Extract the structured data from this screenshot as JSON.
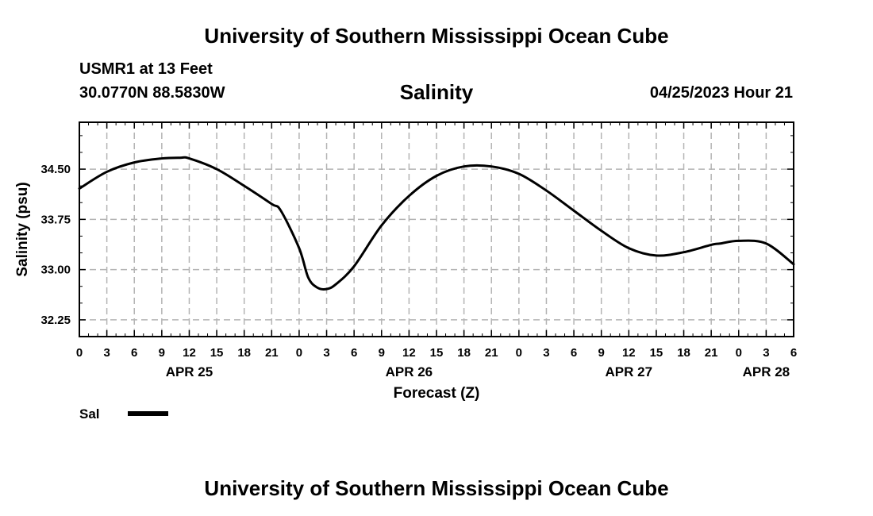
{
  "page": {
    "top_title": "University of Southern Mississippi Ocean Cube",
    "bottom_title": "University of Southern Mississippi Ocean Cube",
    "station": "USMR1 at 13 Feet",
    "location": "30.0770N  88.5830W",
    "chart_title": "Salinity",
    "datetime": "04/25/2023 Hour 21"
  },
  "chart_data": {
    "type": "line",
    "title": "Salinity",
    "xlabel": "Forecast (Z)",
    "ylabel": "Salinity (psu)",
    "x_unit": "hours since 2023-04-25 00Z",
    "xlim": [
      0,
      78
    ],
    "ylim": [
      32.0,
      35.2
    ],
    "grid": true,
    "y_ticks": [
      32.25,
      33.0,
      33.75,
      34.5
    ],
    "y_tick_labels": [
      "32.25",
      "33.00",
      "33.75",
      "34.50"
    ],
    "x_ticks": [
      0,
      3,
      6,
      9,
      12,
      15,
      18,
      21,
      24,
      27,
      30,
      33,
      36,
      39,
      42,
      45,
      48,
      51,
      54,
      57,
      60,
      63,
      66,
      69,
      72,
      75,
      78
    ],
    "x_tick_labels": [
      "0",
      "3",
      "6",
      "9",
      "12",
      "15",
      "18",
      "21",
      "0",
      "3",
      "6",
      "9",
      "12",
      "15",
      "18",
      "21",
      "0",
      "3",
      "6",
      "9",
      "12",
      "15",
      "18",
      "21",
      "0",
      "3",
      "6"
    ],
    "day_labels": [
      {
        "x": 12,
        "label": "APR 25"
      },
      {
        "x": 36,
        "label": "APR 26"
      },
      {
        "x": 60,
        "label": "APR 27"
      },
      {
        "x": 75,
        "label": "APR 28"
      }
    ],
    "legend": {
      "position": "bottom-left",
      "label": "Sal"
    },
    "series": [
      {
        "name": "Sal",
        "color": "#000000",
        "x": [
          0,
          3,
          6,
          9,
          11,
          12,
          15,
          18,
          21,
          22,
          24,
          25,
          26,
          27,
          28,
          30,
          33,
          36,
          39,
          42,
          45,
          48,
          51,
          54,
          57,
          60,
          63,
          66,
          69,
          70,
          72,
          75,
          78
        ],
        "y": [
          34.21,
          34.46,
          34.6,
          34.66,
          34.67,
          34.66,
          34.5,
          34.25,
          33.98,
          33.88,
          33.32,
          32.88,
          32.73,
          32.71,
          32.78,
          33.05,
          33.66,
          34.1,
          34.4,
          34.54,
          34.54,
          34.43,
          34.18,
          33.88,
          33.58,
          33.32,
          33.21,
          33.26,
          33.37,
          33.39,
          33.43,
          33.39,
          33.08
        ]
      }
    ]
  }
}
